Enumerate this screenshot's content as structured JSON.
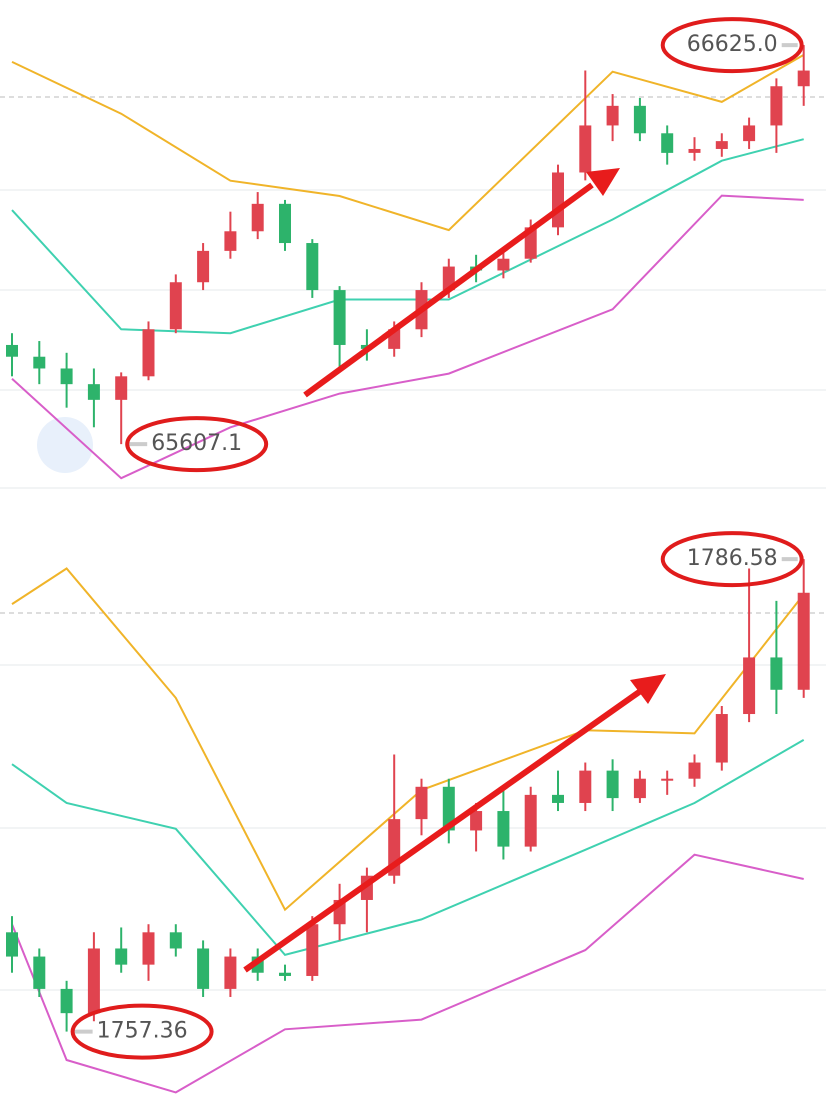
{
  "chart_data": [
    {
      "type": "candlestick",
      "up_color": "#e0434f",
      "down_color": "#2db36b",
      "ylim": [
        65490,
        66740
      ],
      "ohlc": [
        [
          65860,
          65890,
          65780,
          65830
        ],
        [
          65830,
          65870,
          65760,
          65800
        ],
        [
          65800,
          65840,
          65700,
          65760
        ],
        [
          65760,
          65800,
          65650,
          65720
        ],
        [
          65720,
          65790,
          65607.1,
          65780
        ],
        [
          65780,
          65920,
          65770,
          65900
        ],
        [
          65900,
          66040,
          65890,
          66020
        ],
        [
          66020,
          66120,
          66000,
          66100
        ],
        [
          66100,
          66200,
          66080,
          66150
        ],
        [
          66150,
          66250,
          66130,
          66220
        ],
        [
          66220,
          66230,
          66100,
          66120
        ],
        [
          66120,
          66130,
          65980,
          66000
        ],
        [
          66000,
          66010,
          65800,
          65860
        ],
        [
          65860,
          65900,
          65820,
          65850
        ],
        [
          65850,
          65920,
          65830,
          65900
        ],
        [
          65900,
          66020,
          65880,
          66000
        ],
        [
          66000,
          66080,
          65980,
          66060
        ],
        [
          66060,
          66090,
          66020,
          66050
        ],
        [
          66050,
          66100,
          66030,
          66080
        ],
        [
          66080,
          66180,
          66070,
          66160
        ],
        [
          66160,
          66320,
          66140,
          66300
        ],
        [
          66300,
          66560,
          66280,
          66420
        ],
        [
          66420,
          66500,
          66380,
          66470
        ],
        [
          66470,
          66490,
          66380,
          66400
        ],
        [
          66400,
          66420,
          66320,
          66350
        ],
        [
          66350,
          66390,
          66330,
          66360
        ],
        [
          66360,
          66400,
          66340,
          66380
        ],
        [
          66380,
          66440,
          66360,
          66420
        ],
        [
          66420,
          66540,
          66350,
          66520
        ],
        [
          66520,
          66625,
          66470,
          66560
        ]
      ],
      "bands": [
        {
          "color": "#f0b429",
          "x": [
            0,
            4,
            8,
            12,
            16,
            22,
            26,
            29
          ],
          "values": [
            66582,
            66450,
            66279,
            66240,
            66153,
            66557,
            66480,
            66600
          ]
        },
        {
          "color": "#3fd1b0",
          "x": [
            0,
            4,
            8,
            12,
            16,
            22,
            26,
            29
          ],
          "values": [
            66204,
            65900,
            65890,
            65976,
            65976,
            66180,
            66330,
            66385
          ]
        },
        {
          "color": "#d85ec9",
          "x": [
            0,
            4,
            8,
            12,
            16,
            22,
            26,
            29
          ],
          "values": [
            65774,
            65520,
            65650,
            65736,
            65787,
            65951,
            66241,
            66230
          ]
        }
      ],
      "annotations": [
        {
          "value": 66625,
          "label": "66625.0"
        },
        {
          "value": 65607.1,
          "label": "65607.1"
        }
      ]
    },
    {
      "type": "candlestick",
      "up_color": "#e0434f",
      "down_color": "#2db36b",
      "ylim": [
        1753.5,
        1789
      ],
      "ohlc": [
        [
          1763.5,
          1764.5,
          1761,
          1762
        ],
        [
          1762,
          1762.5,
          1759.5,
          1760
        ],
        [
          1760,
          1760.5,
          1757.36,
          1758.5
        ],
        [
          1758.5,
          1763.5,
          1758,
          1762.5
        ],
        [
          1762.5,
          1763.8,
          1761,
          1761.5
        ],
        [
          1761.5,
          1764,
          1760.5,
          1763.5
        ],
        [
          1763.5,
          1764,
          1762,
          1762.5
        ],
        [
          1762.5,
          1763,
          1759.5,
          1760
        ],
        [
          1760,
          1762.5,
          1759.5,
          1762
        ],
        [
          1762,
          1762.5,
          1760.5,
          1761
        ],
        [
          1761,
          1761.5,
          1760.5,
          1760.8
        ],
        [
          1760.8,
          1764.5,
          1760.5,
          1764
        ],
        [
          1764,
          1766.5,
          1763,
          1765.5
        ],
        [
          1765.5,
          1767.5,
          1763.5,
          1767
        ],
        [
          1767,
          1774.5,
          1766.5,
          1770.5
        ],
        [
          1770.5,
          1773,
          1769.5,
          1772.5
        ],
        [
          1772.5,
          1773,
          1769,
          1769.8
        ],
        [
          1769.8,
          1771.5,
          1768.5,
          1771
        ],
        [
          1771,
          1772.5,
          1768,
          1768.8
        ],
        [
          1768.8,
          1772.5,
          1768.5,
          1772
        ],
        [
          1772,
          1773.5,
          1771,
          1771.5
        ],
        [
          1771.5,
          1774,
          1771,
          1773.5
        ],
        [
          1773.5,
          1774.2,
          1771,
          1771.8
        ],
        [
          1771.8,
          1773.5,
          1771.5,
          1773
        ],
        [
          1773,
          1773.5,
          1772,
          1773
        ],
        [
          1773,
          1774.5,
          1772.5,
          1774
        ],
        [
          1774,
          1777.5,
          1773.5,
          1777
        ],
        [
          1777,
          1786,
          1776.5,
          1780.5
        ],
        [
          1780.5,
          1784,
          1777,
          1778.5
        ],
        [
          1778.5,
          1786.58,
          1778,
          1784.5
        ]
      ],
      "bands": [
        {
          "color": "#f0b429",
          "x": [
            0,
            2,
            6,
            10,
            15,
            21,
            25,
            29
          ],
          "values": [
            1783.8,
            1786,
            1778,
            1764.9,
            1772.3,
            1776,
            1775.8,
            1784.4
          ]
        },
        {
          "color": "#3fd1b0",
          "x": [
            0,
            2,
            6,
            10,
            15,
            21,
            25,
            29
          ],
          "values": [
            1773.9,
            1771.5,
            1769.9,
            1762.1,
            1764.3,
            1768.6,
            1771.5,
            1775.4
          ]
        },
        {
          "color": "#d85ec9",
          "x": [
            0,
            2,
            6,
            10,
            15,
            21,
            25,
            29
          ],
          "values": [
            1764,
            1755.6,
            1753.6,
            1757.5,
            1758.1,
            1762.4,
            1768.3,
            1766.8
          ]
        }
      ],
      "annotations": [
        {
          "value": 1786.58,
          "label": "1786.58"
        },
        {
          "value": 1757.36,
          "label": "1757.36"
        }
      ]
    }
  ]
}
